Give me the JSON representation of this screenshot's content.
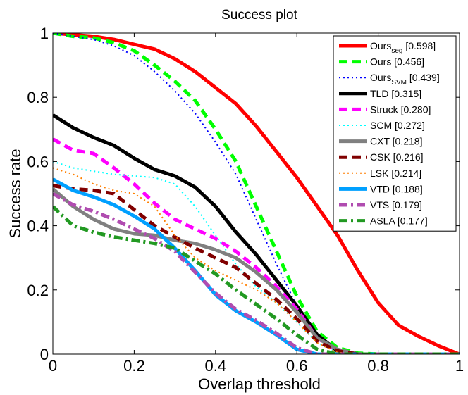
{
  "chart_data": {
    "type": "line",
    "title": "Success plot",
    "xlabel": "Overlap threshold",
    "ylabel": "Success rate",
    "xlim": [
      0,
      1
    ],
    "ylim": [
      0,
      1
    ],
    "xticks": [
      "0",
      "0.2",
      "0.4",
      "0.6",
      "0.8",
      "1"
    ],
    "yticks": [
      "0",
      "0.2",
      "0.4",
      "0.6",
      "0.8",
      "1"
    ],
    "legend_position": "top-right",
    "x": [
      0,
      0.05,
      0.1,
      0.15,
      0.2,
      0.25,
      0.3,
      0.35,
      0.4,
      0.45,
      0.5,
      0.55,
      0.6,
      0.65,
      0.7,
      0.75,
      0.8,
      0.85,
      0.9,
      0.95,
      1.0
    ],
    "series": [
      {
        "name": "Ours",
        "subscript": "seg",
        "score": "[0.598]",
        "color": "#ff0000",
        "dash": "solid",
        "values": [
          1.0,
          0.995,
          0.99,
          0.98,
          0.965,
          0.95,
          0.92,
          0.88,
          0.83,
          0.78,
          0.71,
          0.63,
          0.55,
          0.46,
          0.37,
          0.26,
          0.16,
          0.09,
          0.055,
          0.025,
          0.0
        ]
      },
      {
        "name": "Ours",
        "subscript": "",
        "score": "[0.456]",
        "color": "#00ff00",
        "dash": "dashed",
        "values": [
          1.0,
          0.99,
          0.985,
          0.97,
          0.945,
          0.9,
          0.85,
          0.79,
          0.7,
          0.6,
          0.46,
          0.32,
          0.18,
          0.07,
          0.02,
          0.003,
          0.0,
          0.0,
          0.0,
          0.0,
          0.0
        ]
      },
      {
        "name": "Ours",
        "subscript": "SVM",
        "score": "[0.439]",
        "color": "#0000ff",
        "dash": "dotted",
        "values": [
          1.0,
          0.99,
          0.98,
          0.96,
          0.93,
          0.88,
          0.82,
          0.75,
          0.66,
          0.56,
          0.42,
          0.28,
          0.15,
          0.05,
          0.015,
          0.002,
          0.0,
          0.0,
          0.0,
          0.0,
          0.0
        ]
      },
      {
        "name": "TLD",
        "subscript": "",
        "score": "[0.315]",
        "color": "#000000",
        "dash": "solid",
        "values": [
          0.745,
          0.705,
          0.675,
          0.65,
          0.61,
          0.575,
          0.555,
          0.52,
          0.46,
          0.38,
          0.31,
          0.23,
          0.15,
          0.06,
          0.01,
          0.0,
          0.0,
          0.0,
          0.0,
          0.0,
          0.0
        ]
      },
      {
        "name": "Struck",
        "subscript": "",
        "score": "[0.280]",
        "color": "#ff00ff",
        "dash": "dashed",
        "values": [
          0.67,
          0.635,
          0.625,
          0.58,
          0.53,
          0.47,
          0.42,
          0.39,
          0.36,
          0.32,
          0.27,
          0.21,
          0.14,
          0.05,
          0.01,
          0.0,
          0.0,
          0.0,
          0.0,
          0.0,
          0.0
        ]
      },
      {
        "name": "SCM",
        "subscript": "",
        "score": "[0.272]",
        "color": "#00ffff",
        "dash": "dotted",
        "values": [
          0.6,
          0.58,
          0.57,
          0.56,
          0.555,
          0.55,
          0.53,
          0.46,
          0.37,
          0.28,
          0.21,
          0.16,
          0.1,
          0.035,
          0.005,
          0.0,
          0.0,
          0.0,
          0.0,
          0.0,
          0.0
        ]
      },
      {
        "name": "CXT",
        "subscript": "",
        "score": "[0.218]",
        "color": "#808080",
        "dash": "solid",
        "values": [
          0.515,
          0.46,
          0.42,
          0.39,
          0.375,
          0.37,
          0.355,
          0.345,
          0.325,
          0.3,
          0.255,
          0.2,
          0.13,
          0.05,
          0.015,
          0.0,
          0.0,
          0.0,
          0.0,
          0.0,
          0.0
        ]
      },
      {
        "name": "CSK",
        "subscript": "",
        "score": "[0.216]",
        "color": "#800000",
        "dash": "dashed",
        "values": [
          0.525,
          0.515,
          0.51,
          0.5,
          0.45,
          0.4,
          0.365,
          0.33,
          0.3,
          0.27,
          0.22,
          0.17,
          0.11,
          0.04,
          0.01,
          0.0,
          0.0,
          0.0,
          0.0,
          0.0,
          0.0
        ]
      },
      {
        "name": "LSK",
        "subscript": "",
        "score": "[0.214]",
        "color": "#ff7f00",
        "dash": "dotted",
        "values": [
          0.58,
          0.56,
          0.53,
          0.51,
          0.5,
          0.46,
          0.37,
          0.3,
          0.26,
          0.23,
          0.2,
          0.16,
          0.1,
          0.035,
          0.005,
          0.0,
          0.0,
          0.0,
          0.0,
          0.0,
          0.0
        ]
      },
      {
        "name": "VTD",
        "subscript": "",
        "score": "[0.188]",
        "color": "#00a0ff",
        "dash": "solid",
        "values": [
          0.545,
          0.51,
          0.49,
          0.465,
          0.43,
          0.39,
          0.33,
          0.26,
          0.185,
          0.135,
          0.1,
          0.06,
          0.015,
          0.0,
          0.0,
          0.0,
          0.0,
          0.0,
          0.0,
          0.0,
          0.0
        ]
      },
      {
        "name": "VTS",
        "subscript": "",
        "score": "[0.179]",
        "color": "#b04cb0",
        "dash": "dashdot",
        "values": [
          0.5,
          0.465,
          0.445,
          0.42,
          0.39,
          0.36,
          0.32,
          0.255,
          0.19,
          0.14,
          0.105,
          0.065,
          0.02,
          0.0,
          0.0,
          0.0,
          0.0,
          0.0,
          0.0,
          0.0,
          0.0
        ]
      },
      {
        "name": "ASLA",
        "subscript": "",
        "score": "[0.177]",
        "color": "#229922",
        "dash": "dashdot",
        "values": [
          0.46,
          0.4,
          0.38,
          0.365,
          0.355,
          0.345,
          0.33,
          0.29,
          0.25,
          0.2,
          0.155,
          0.11,
          0.06,
          0.015,
          0.0,
          0.0,
          0.0,
          0.0,
          0.0,
          0.0,
          0.0
        ]
      }
    ]
  }
}
